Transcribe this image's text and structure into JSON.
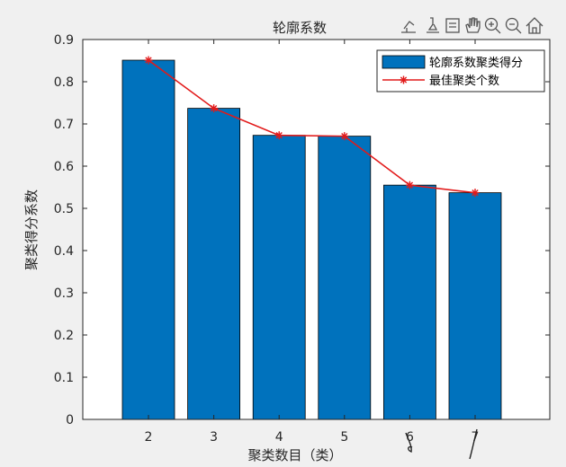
{
  "chart_data": {
    "type": "bar",
    "title": "轮廓系数",
    "xlabel": "聚类数目（类）",
    "ylabel": "聚类得分系数",
    "categories": [
      "2",
      "3",
      "4",
      "5",
      "6",
      "7"
    ],
    "series": [
      {
        "name": "轮廓系数聚类得分",
        "type": "bar",
        "color": "#0072BD",
        "values": [
          0.851,
          0.737,
          0.673,
          0.671,
          0.555,
          0.537
        ]
      },
      {
        "name": "最佳聚类个数",
        "type": "line",
        "marker": "asterisk",
        "color": "#E21A1A",
        "values": [
          0.851,
          0.737,
          0.673,
          0.671,
          0.555,
          0.537
        ]
      }
    ],
    "ylim": [
      0,
      0.9
    ],
    "yticks": [
      "0",
      "0.1",
      "0.2",
      "0.3",
      "0.4",
      "0.5",
      "0.6",
      "0.7",
      "0.8",
      "0.9"
    ],
    "grid": false,
    "legend_position": "top-right"
  },
  "toolbar": {
    "icons": [
      "export-icon",
      "brush-icon",
      "data-tips-icon",
      "pan-hand-icon",
      "zoom-in-icon",
      "zoom-out-icon",
      "home-icon"
    ]
  }
}
